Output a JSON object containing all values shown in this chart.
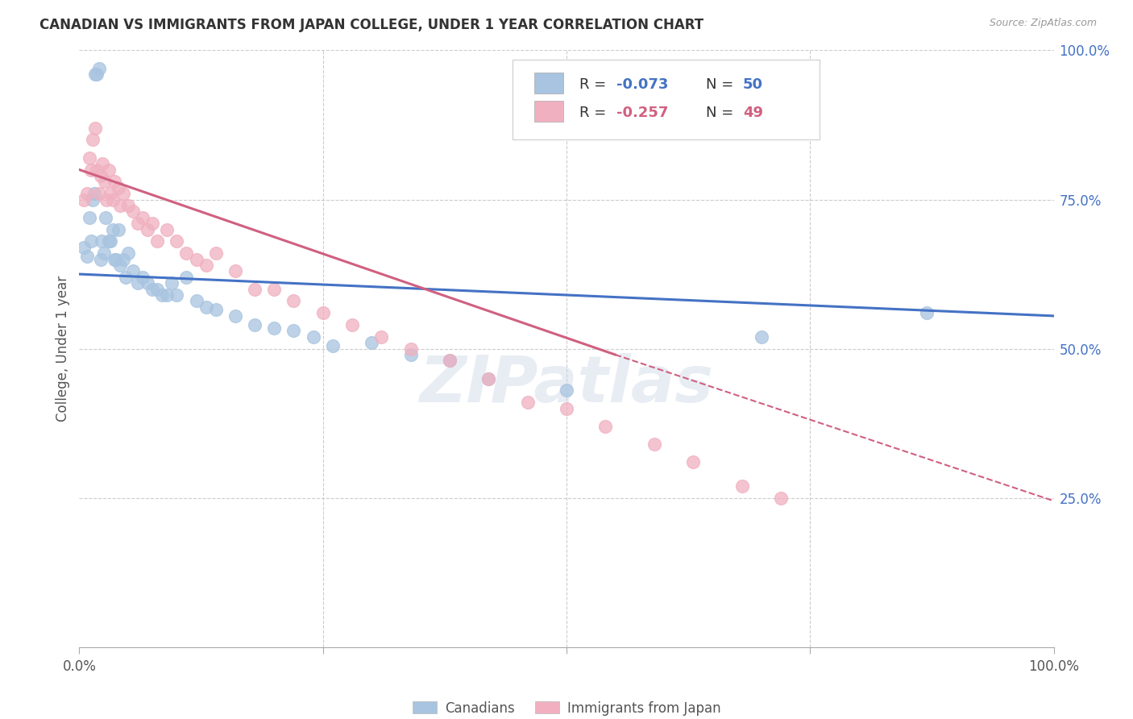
{
  "title": "CANADIAN VS IMMIGRANTS FROM JAPAN COLLEGE, UNDER 1 YEAR CORRELATION CHART",
  "source": "Source: ZipAtlas.com",
  "ylabel": "College, Under 1 year",
  "xlim": [
    0.0,
    1.0
  ],
  "ylim": [
    0.0,
    1.0
  ],
  "canadians_color": "#a8c4e0",
  "immigrants_color": "#f0b0c0",
  "trendline_canadian_color": "#4472c4",
  "trendline_immigrant_color": "#d06080",
  "background_color": "#ffffff",
  "watermark": "ZIPatlas",
  "grid_color": "#cccccc",
  "title_color": "#333333",
  "axis_label_color": "#555555",
  "right_axis_color": "#4472c4",
  "canadians_x": [
    0.005,
    0.008,
    0.01,
    0.012,
    0.014,
    0.015,
    0.016,
    0.018,
    0.02,
    0.022,
    0.023,
    0.025,
    0.027,
    0.03,
    0.032,
    0.034,
    0.036,
    0.038,
    0.04,
    0.042,
    0.045,
    0.048,
    0.05,
    0.055,
    0.06,
    0.065,
    0.07,
    0.075,
    0.08,
    0.085,
    0.09,
    0.095,
    0.1,
    0.11,
    0.12,
    0.13,
    0.14,
    0.16,
    0.18,
    0.2,
    0.22,
    0.24,
    0.26,
    0.3,
    0.34,
    0.38,
    0.42,
    0.5,
    0.7,
    0.87
  ],
  "canadians_y": [
    0.67,
    0.655,
    0.72,
    0.68,
    0.75,
    0.76,
    0.96,
    0.96,
    0.97,
    0.65,
    0.68,
    0.66,
    0.72,
    0.68,
    0.68,
    0.7,
    0.65,
    0.65,
    0.7,
    0.64,
    0.65,
    0.62,
    0.66,
    0.63,
    0.61,
    0.62,
    0.61,
    0.6,
    0.6,
    0.59,
    0.59,
    0.61,
    0.59,
    0.62,
    0.58,
    0.57,
    0.565,
    0.555,
    0.54,
    0.535,
    0.53,
    0.52,
    0.505,
    0.51,
    0.49,
    0.48,
    0.45,
    0.43,
    0.52,
    0.56
  ],
  "immigrants_x": [
    0.005,
    0.008,
    0.01,
    0.012,
    0.014,
    0.016,
    0.018,
    0.02,
    0.022,
    0.024,
    0.026,
    0.028,
    0.03,
    0.032,
    0.034,
    0.036,
    0.04,
    0.042,
    0.045,
    0.05,
    0.055,
    0.06,
    0.065,
    0.07,
    0.075,
    0.08,
    0.09,
    0.1,
    0.11,
    0.12,
    0.13,
    0.14,
    0.16,
    0.18,
    0.2,
    0.22,
    0.25,
    0.28,
    0.31,
    0.34,
    0.38,
    0.42,
    0.46,
    0.5,
    0.54,
    0.59,
    0.63,
    0.68,
    0.72
  ],
  "immigrants_y": [
    0.75,
    0.76,
    0.82,
    0.8,
    0.85,
    0.87,
    0.8,
    0.76,
    0.79,
    0.81,
    0.78,
    0.75,
    0.8,
    0.76,
    0.75,
    0.78,
    0.77,
    0.74,
    0.76,
    0.74,
    0.73,
    0.71,
    0.72,
    0.7,
    0.71,
    0.68,
    0.7,
    0.68,
    0.66,
    0.65,
    0.64,
    0.66,
    0.63,
    0.6,
    0.6,
    0.58,
    0.56,
    0.54,
    0.52,
    0.5,
    0.48,
    0.45,
    0.41,
    0.4,
    0.37,
    0.34,
    0.31,
    0.27,
    0.25
  ],
  "trendline_can_x0": 0.0,
  "trendline_can_y0": 0.625,
  "trendline_can_x1": 1.0,
  "trendline_can_y1": 0.555,
  "trendline_imm_x0": 0.0,
  "trendline_imm_y0": 0.8,
  "trendline_imm_x1": 0.55,
  "trendline_imm_y1": 0.49,
  "trendline_imm_dash_x0": 0.55,
  "trendline_imm_dash_y0": 0.49,
  "trendline_imm_dash_x1": 1.0,
  "trendline_imm_dash_y1": 0.245
}
